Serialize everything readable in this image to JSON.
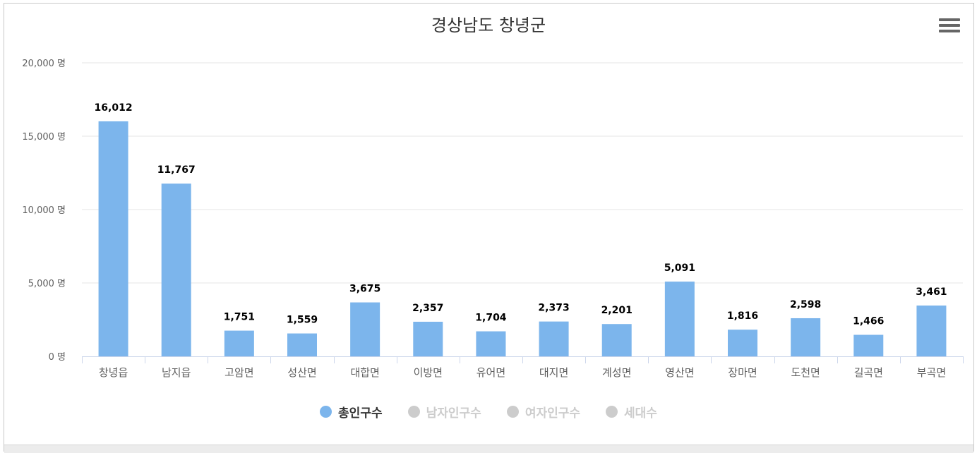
{
  "chart_data": {
    "type": "bar",
    "title": "경상남도 창녕군",
    "categories": [
      "창녕읍",
      "남지읍",
      "고암면",
      "성산면",
      "대합면",
      "이방면",
      "유어면",
      "대지면",
      "계성면",
      "영산면",
      "장마면",
      "도천면",
      "길곡면",
      "부곡면"
    ],
    "series": [
      {
        "name": "총인구수",
        "values": [
          16012,
          11767,
          1751,
          1559,
          3675,
          2357,
          1704,
          2373,
          2201,
          5091,
          1816,
          2598,
          1466,
          3461
        ],
        "labels": [
          "16,012",
          "11,767",
          "1,751",
          "1,559",
          "3,675",
          "2,357",
          "1,704",
          "2,373",
          "2,201",
          "5,091",
          "1,816",
          "2,598",
          "1,466",
          "3,461"
        ],
        "color": "#7cb5ec",
        "visible": true
      }
    ],
    "ylim": [
      0,
      20000
    ],
    "yticks": [
      0,
      5000,
      10000,
      15000,
      20000
    ],
    "ytick_labels": [
      "0 명",
      "5,000 명",
      "10,000 명",
      "15,000 명",
      "20,000 명"
    ],
    "grid": true,
    "legend_position": "bottom",
    "legend": [
      {
        "name": "총인구수",
        "color": "#7cb5ec",
        "active": true
      },
      {
        "name": "남자인구수",
        "color": "#cccccc",
        "active": false
      },
      {
        "name": "여자인구수",
        "color": "#cccccc",
        "active": false
      },
      {
        "name": "세대수",
        "color": "#cccccc",
        "active": false
      }
    ]
  },
  "menu": {
    "icon": "hamburger-menu-icon"
  }
}
